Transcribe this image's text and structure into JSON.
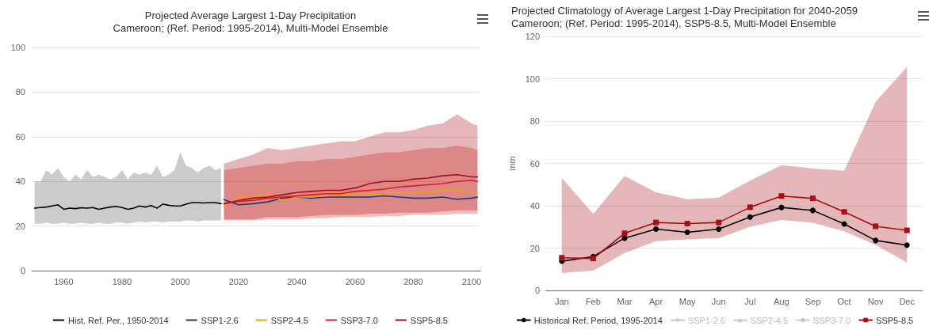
{
  "chart_data": [
    {
      "type": "line",
      "title": "Projected Average Largest 1-Day Precipitation",
      "subtitle": "Cameroon; (Ref. Period: 1995-2014), Multi-Model Ensemble",
      "xlim": [
        1949,
        2103
      ],
      "xticks": [
        1960,
        1980,
        2000,
        2020,
        2040,
        2060,
        2080,
        2100
      ],
      "ylim": [
        0,
        100
      ],
      "yticks": [
        0,
        20,
        40,
        60,
        80,
        100
      ],
      "grid": "y",
      "legend": "bottom",
      "marker": "none",
      "series": [
        {
          "name": "Hist. Ref. Per., 1950-2014",
          "color": "#000000",
          "x": [
            1950,
            1952,
            1954,
            1956,
            1958,
            1960,
            1962,
            1964,
            1966,
            1968,
            1970,
            1972,
            1974,
            1976,
            1978,
            1980,
            1982,
            1984,
            1986,
            1988,
            1990,
            1992,
            1994,
            1996,
            1998,
            2000,
            2002,
            2004,
            2006,
            2008,
            2010,
            2012,
            2014
          ],
          "values": [
            28,
            28.3,
            28.5,
            29,
            29.5,
            27.5,
            28,
            27.8,
            28.2,
            28,
            28.3,
            27.5,
            28,
            28.5,
            28.8,
            28.3,
            27.5,
            28,
            29,
            28.5,
            29.2,
            28,
            29.8,
            29.3,
            29,
            29,
            29.8,
            30.5,
            30.5,
            30.3,
            30.5,
            30.5,
            30
          ],
          "lower": [
            21,
            21,
            21.5,
            21,
            21,
            21.5,
            21,
            21,
            21.5,
            21,
            21,
            21.5,
            21,
            21,
            21.5,
            21.5,
            21,
            21.5,
            22,
            21.5,
            22,
            22,
            21.5,
            22,
            22,
            22,
            22.5,
            22.5,
            22,
            22.5,
            22.5,
            22.5,
            22.5
          ],
          "upper": [
            40,
            40,
            45,
            43,
            46,
            42,
            40,
            43,
            41,
            45,
            42,
            43,
            42,
            41,
            42,
            45,
            41,
            44,
            43,
            44,
            43,
            47,
            42,
            43,
            45,
            53,
            47,
            46,
            44,
            46,
            47,
            45,
            46
          ]
        },
        {
          "name": "SSP1-2.6",
          "color": "#1f3a78",
          "x": [
            2015,
            2020,
            2025,
            2030,
            2035,
            2040,
            2045,
            2050,
            2055,
            2060,
            2065,
            2070,
            2075,
            2080,
            2085,
            2090,
            2095,
            2100,
            2102
          ],
          "values": [
            31.8,
            29.5,
            30,
            30.8,
            32.5,
            33,
            32.5,
            33,
            33,
            33,
            33,
            33.5,
            33,
            32.5,
            32.5,
            33,
            32,
            32.5,
            33
          ]
        },
        {
          "name": "SSP2-4.5",
          "color": "#f39c12",
          "x": [
            2015,
            2020,
            2025,
            2030,
            2035,
            2040,
            2045,
            2050,
            2055,
            2060,
            2065,
            2070,
            2075,
            2080,
            2085,
            2090,
            2095,
            2100,
            2102
          ],
          "values": [
            28.5,
            33,
            33.8,
            34.5,
            31.5,
            33,
            33,
            33.5,
            34,
            34,
            34.5,
            34.5,
            35,
            35,
            35.5,
            36,
            36,
            35,
            35
          ]
        },
        {
          "name": "SSP3-7.0",
          "color": "#e31a1c",
          "x": [
            2015,
            2020,
            2025,
            2030,
            2035,
            2040,
            2045,
            2050,
            2055,
            2060,
            2065,
            2070,
            2075,
            2080,
            2085,
            2090,
            2095,
            2100,
            2102
          ],
          "values": [
            30,
            31,
            31.5,
            32.5,
            33,
            33.5,
            34,
            34.5,
            34.5,
            35.5,
            36,
            36.5,
            37.5,
            38,
            38.5,
            39,
            40,
            40.5,
            40
          ],
          "lower": [
            22.5,
            22.5,
            22.5,
            23,
            23,
            23,
            23.5,
            23.5,
            24,
            24,
            24,
            24.5,
            24.5,
            25,
            25,
            25,
            25.5,
            25.5,
            25.5
          ],
          "upper": [
            45,
            46,
            47,
            48,
            48,
            49,
            49,
            50,
            50,
            51,
            52,
            53,
            53,
            54,
            55,
            55,
            56,
            55,
            54
          ]
        },
        {
          "name": "SSP5-8.5",
          "color": "#a50f15",
          "x": [
            2015,
            2020,
            2025,
            2030,
            2035,
            2040,
            2045,
            2050,
            2055,
            2060,
            2065,
            2070,
            2075,
            2080,
            2085,
            2090,
            2095,
            2100,
            2102
          ],
          "values": [
            30,
            31.5,
            32.5,
            33,
            34,
            35,
            35.5,
            36,
            36,
            37,
            39,
            40,
            40,
            41,
            41.5,
            42.5,
            43,
            42,
            42
          ],
          "lower": [
            23,
            23,
            23,
            24,
            24,
            24,
            24.5,
            25,
            25,
            25,
            25.5,
            25.5,
            26,
            26,
            26,
            26.5,
            27,
            27,
            27
          ],
          "upper": [
            48,
            50,
            52,
            55,
            54,
            55,
            56,
            57,
            58,
            58,
            60,
            62,
            62,
            63,
            65,
            66,
            70,
            66,
            65
          ]
        }
      ]
    },
    {
      "type": "line",
      "title": "Projected Climatology of Average Largest 1-Day Precipitation for 2040-2059",
      "subtitle": "Cameroon; (Ref. Period: 1995-2014), SSP5-8.5, Multi-Model Ensemble",
      "ylabel": "mm",
      "categories": [
        "Jan",
        "Feb",
        "Mar",
        "Apr",
        "May",
        "Jun",
        "Jul",
        "Aug",
        "Sep",
        "Oct",
        "Nov",
        "Dec"
      ],
      "ylim": [
        0,
        120
      ],
      "yticks": [
        0,
        20,
        40,
        60,
        80,
        100,
        120
      ],
      "grid": "y",
      "legend": "bottom",
      "series": [
        {
          "name": "Historical Ref. Period, 1995-2014",
          "color": "#000000",
          "marker": "circle",
          "values": [
            13.8,
            16,
            24.7,
            29,
            27.5,
            29,
            34.7,
            39.2,
            37.8,
            31.4,
            23.6,
            21.4
          ]
        },
        {
          "name": "SSP1-2.6",
          "color": "#c8c8c8",
          "marker": "diamond",
          "values": [
            null,
            null,
            null,
            null,
            null,
            null,
            null,
            null,
            null,
            null,
            null,
            null
          ]
        },
        {
          "name": "SSP2-4.5",
          "color": "#c8c8c8",
          "marker": "triangle",
          "values": [
            null,
            null,
            null,
            null,
            null,
            null,
            null,
            null,
            null,
            null,
            null,
            null
          ]
        },
        {
          "name": "SSP3-7.0",
          "color": "#c8c8c8",
          "marker": "circle",
          "values": [
            null,
            null,
            null,
            null,
            null,
            null,
            null,
            null,
            null,
            null,
            null,
            null
          ]
        },
        {
          "name": "SSP5-8.5",
          "color": "#a50f15",
          "marker": "square",
          "values": [
            15.4,
            15.1,
            27,
            32.1,
            31.6,
            32.1,
            39.3,
            44.6,
            43.5,
            37.1,
            30.3,
            28.4
          ],
          "lower": [
            8.2,
            9.3,
            17.7,
            23.3,
            24.1,
            24.7,
            30.1,
            33.3,
            32,
            27.9,
            21.5,
            13.2
          ],
          "upper": [
            53.1,
            36.2,
            54,
            46.4,
            43.1,
            43.8,
            51.9,
            59.2,
            57.6,
            56.5,
            89.1,
            105.6
          ]
        }
      ]
    }
  ]
}
